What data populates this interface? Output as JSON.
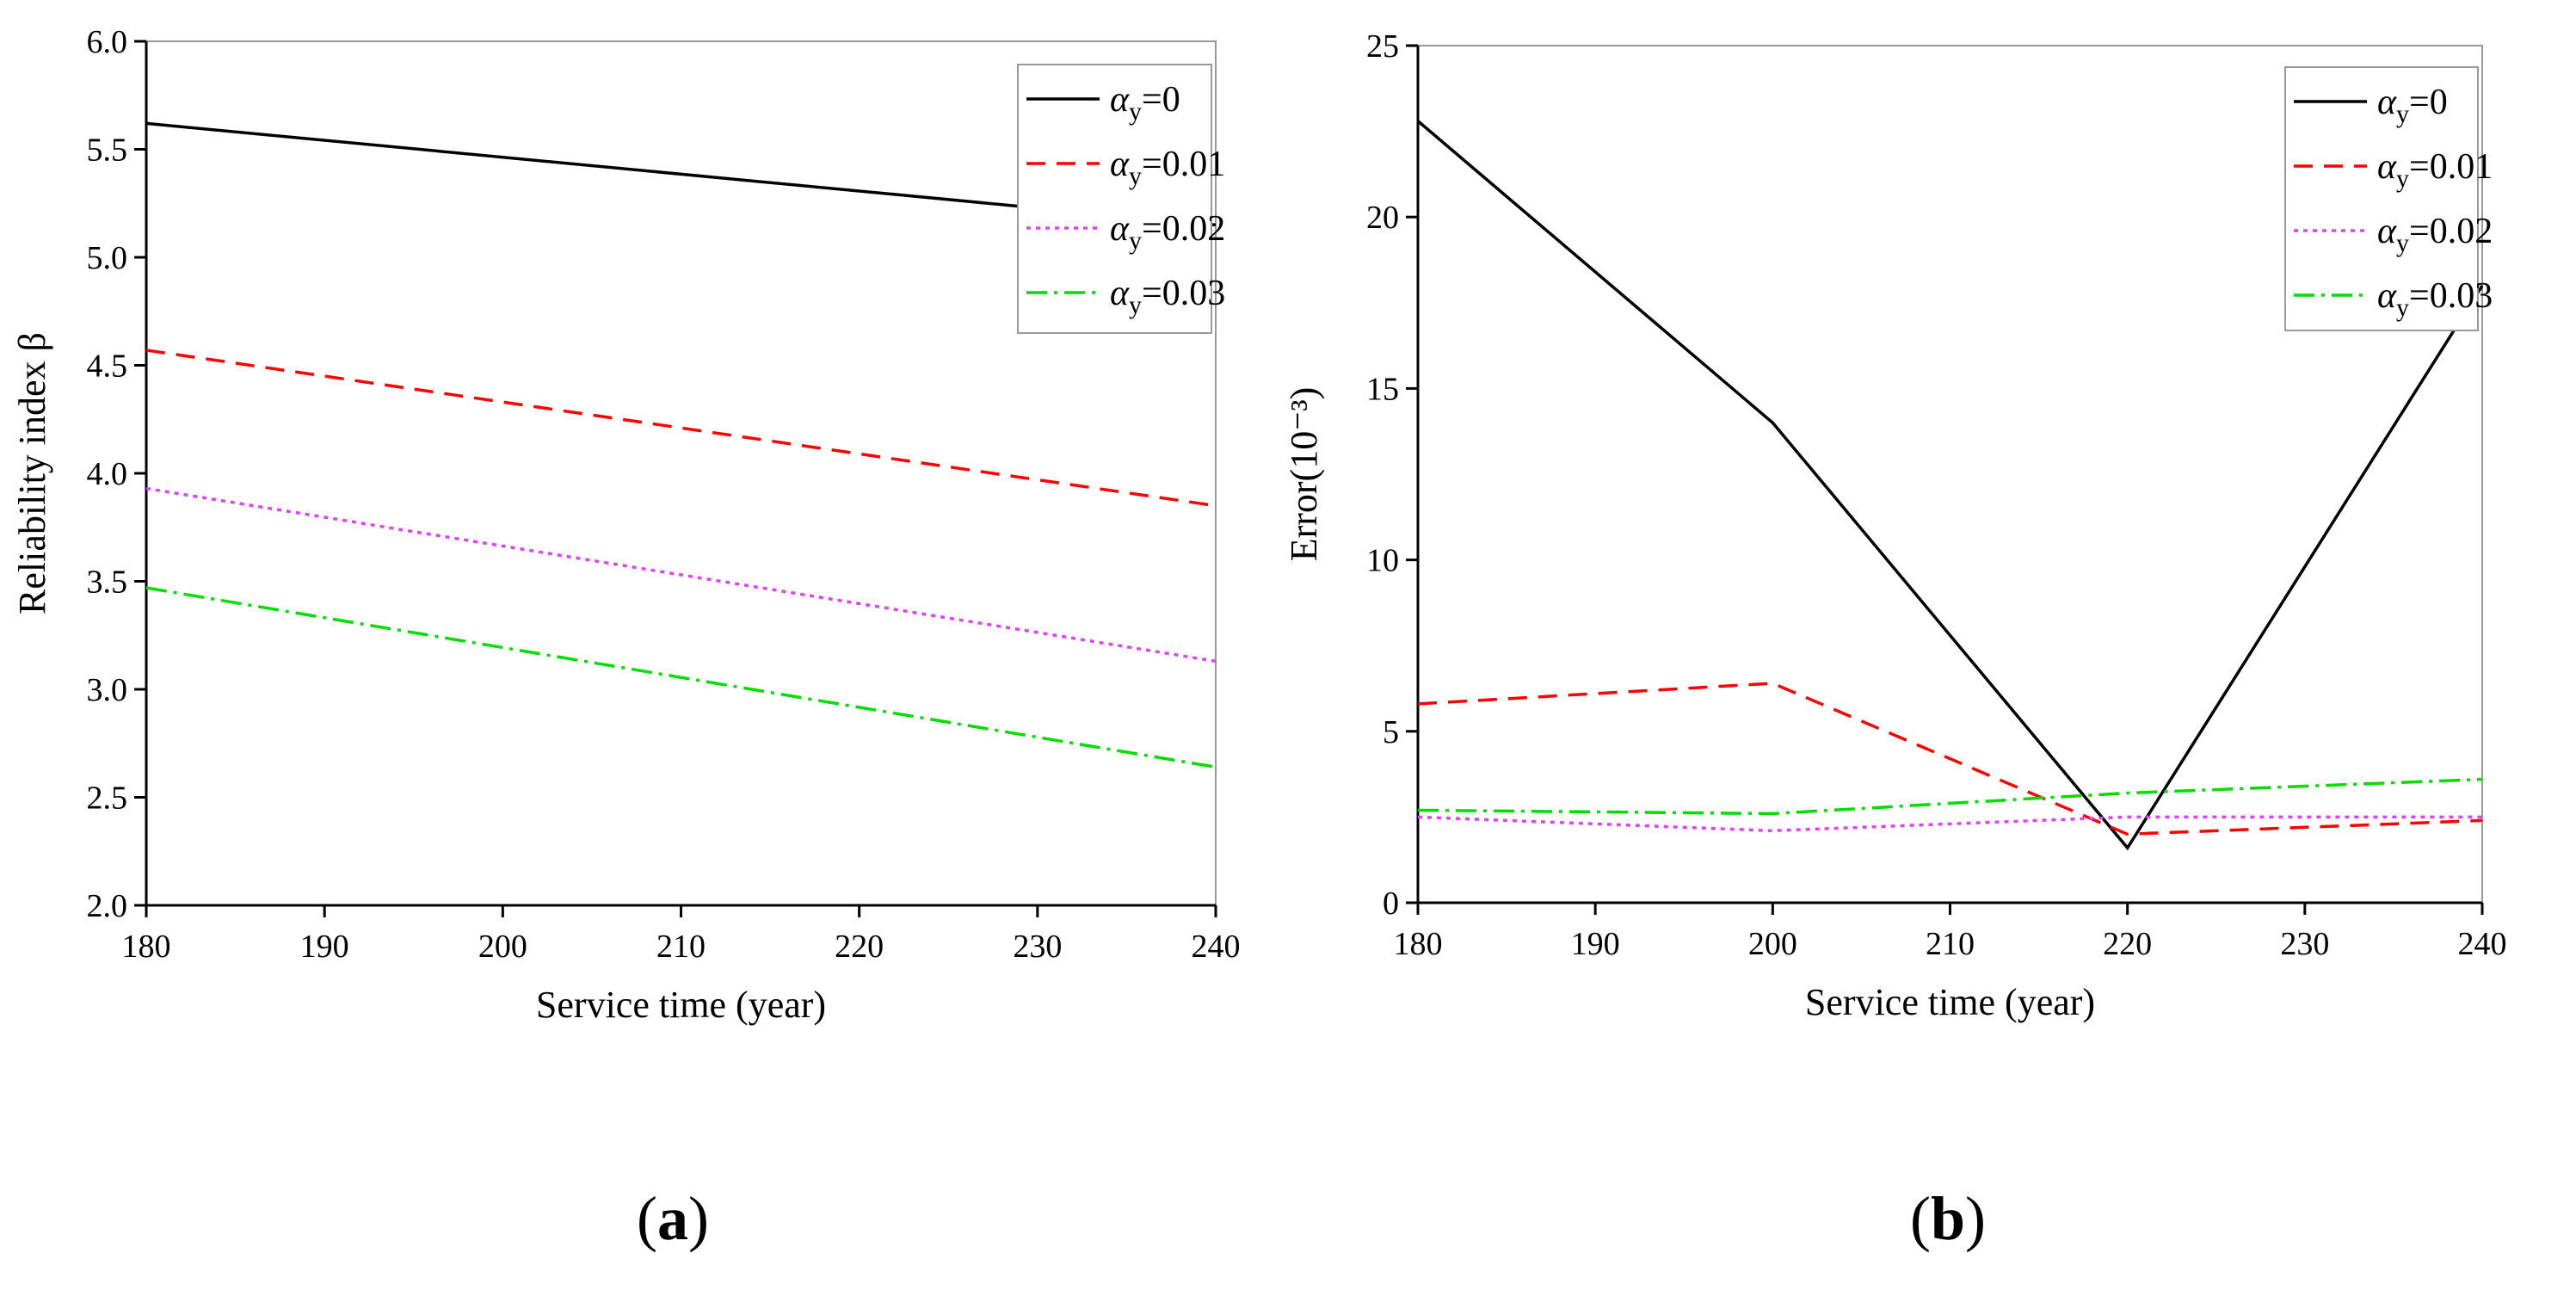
{
  "chart_data": [
    {
      "type": "line",
      "panel": "(a)",
      "panel_letter": "a",
      "xlabel": "Service time (year)",
      "ylabel": "Reliability index β",
      "xlim": [
        180,
        240
      ],
      "ylim": [
        2.0,
        6.0
      ],
      "xticks": [
        180,
        190,
        200,
        210,
        220,
        230,
        240
      ],
      "xtick_labels": [
        "180",
        "190",
        "200",
        "210",
        "220",
        "230",
        "240"
      ],
      "yticks": [
        2.0,
        2.5,
        3.0,
        3.5,
        4.0,
        4.5,
        5.0,
        5.5,
        6.0
      ],
      "ytick_labels": [
        "2.0",
        "2.5",
        "3.0",
        "3.5",
        "4.0",
        "4.5",
        "5.0",
        "5.5",
        "6.0"
      ],
      "legend_position": "top-right",
      "series": [
        {
          "name": "αy=0",
          "symbol": "α",
          "sub": "y",
          "suffix": "=0",
          "color": "#000000",
          "dash": "solid",
          "x": [
            180,
            240
          ],
          "y": [
            5.62,
            5.15
          ]
        },
        {
          "name": "αy=0.01",
          "symbol": "α",
          "sub": "y",
          "suffix": "=0.01",
          "color": "#ff0000",
          "dash": "dash",
          "x": [
            180,
            240
          ],
          "y": [
            4.57,
            3.85
          ]
        },
        {
          "name": "αy=0.02",
          "symbol": "α",
          "sub": "y",
          "suffix": "=0.02",
          "color": "#e040fb",
          "dash": "dot",
          "x": [
            180,
            240
          ],
          "y": [
            3.93,
            3.13
          ]
        },
        {
          "name": "αy=0.03",
          "symbol": "α",
          "sub": "y",
          "suffix": "=0.03",
          "color": "#00dd00",
          "dash": "dashdot",
          "x": [
            180,
            240
          ],
          "y": [
            3.47,
            2.64
          ]
        }
      ]
    },
    {
      "type": "line",
      "panel": "(b)",
      "panel_letter": "b",
      "xlabel": "Service time (year)",
      "ylabel": "Error(10⁻³)",
      "xlim": [
        180,
        240
      ],
      "ylim": [
        0,
        25
      ],
      "xticks": [
        180,
        190,
        200,
        210,
        220,
        230,
        240
      ],
      "xtick_labels": [
        "180",
        "190",
        "200",
        "210",
        "220",
        "230",
        "240"
      ],
      "yticks": [
        0,
        5,
        10,
        15,
        20,
        25
      ],
      "ytick_labels": [
        "0",
        "5",
        "10",
        "15",
        "20",
        "25"
      ],
      "legend_position": "top-right",
      "series": [
        {
          "name": "αy=0",
          "symbol": "α",
          "sub": "y",
          "suffix": "=0",
          "color": "#000000",
          "dash": "solid",
          "x": [
            180,
            200,
            220,
            240
          ],
          "y": [
            22.8,
            14.0,
            1.6,
            18.0
          ]
        },
        {
          "name": "αy=0.01",
          "symbol": "α",
          "sub": "y",
          "suffix": "=0.01",
          "color": "#ff0000",
          "dash": "dash",
          "x": [
            180,
            200,
            220,
            240
          ],
          "y": [
            5.8,
            6.4,
            2.0,
            2.4
          ]
        },
        {
          "name": "αy=0.02",
          "symbol": "α",
          "sub": "y",
          "suffix": "=0.02",
          "color": "#e040fb",
          "dash": "dot",
          "x": [
            180,
            200,
            220,
            240
          ],
          "y": [
            2.5,
            2.1,
            2.5,
            2.5
          ]
        },
        {
          "name": "αy=0.03",
          "symbol": "α",
          "sub": "y",
          "suffix": "=0.03",
          "color": "#00dd00",
          "dash": "dashdot",
          "x": [
            180,
            200,
            220,
            240
          ],
          "y": [
            2.7,
            2.6,
            3.2,
            3.6
          ]
        }
      ]
    }
  ]
}
